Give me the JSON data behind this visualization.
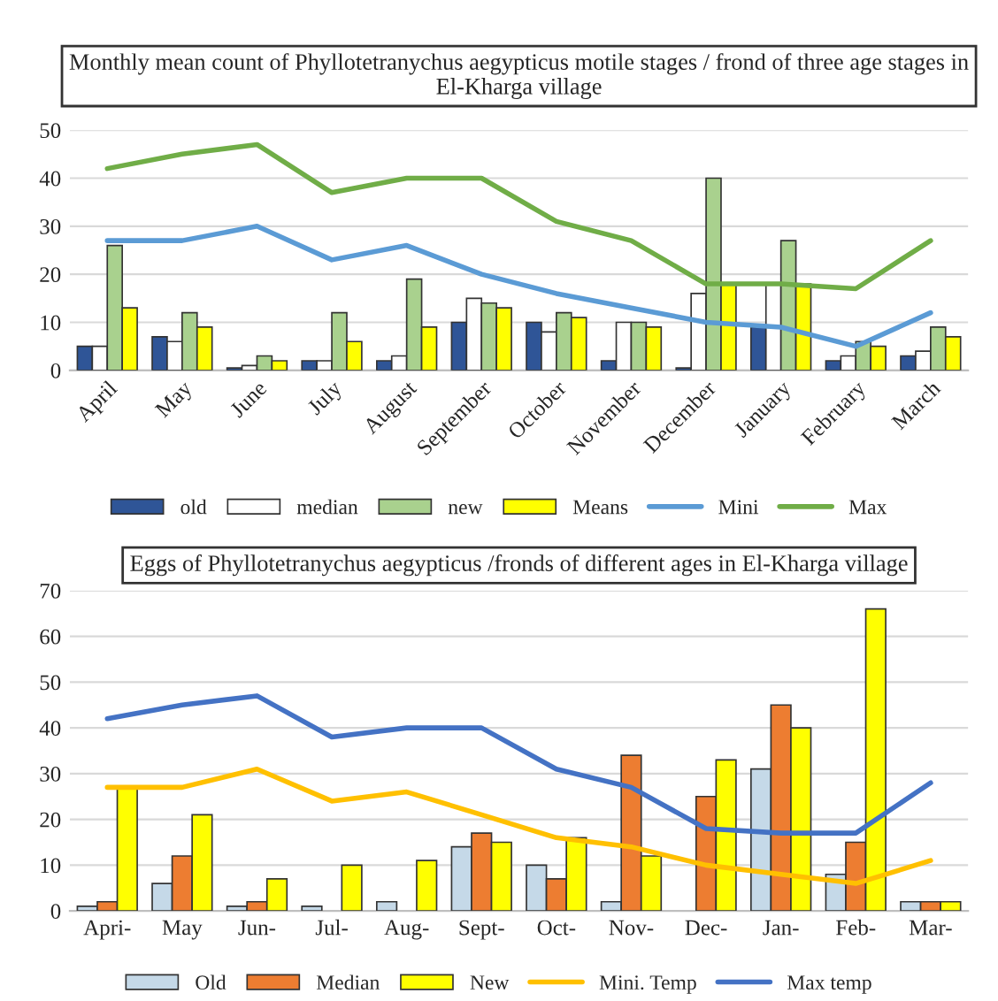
{
  "chart_data": [
    {
      "type": "bar",
      "title": "Monthly mean count of Phyllotetranychus aegypticus motile stages / frond of three age stages in El-Kharga village",
      "categories": [
        "April",
        "May",
        "June",
        "July",
        "August",
        "September",
        "October",
        "November",
        "December",
        "January",
        "February",
        "March"
      ],
      "series": [
        {
          "name": "old",
          "color": "#2f5597",
          "values": [
            5,
            7,
            0.5,
            2,
            2,
            10,
            10,
            2,
            0.5,
            9,
            2,
            3
          ]
        },
        {
          "name": "median",
          "color": "#ffffff",
          "values": [
            5,
            6,
            1,
            2,
            3,
            15,
            8,
            10,
            16,
            18,
            3,
            4
          ]
        },
        {
          "name": "new",
          "color": "#a9d18e",
          "values": [
            26,
            12,
            3,
            12,
            19,
            14,
            12,
            10,
            40,
            27,
            6,
            9
          ]
        },
        {
          "name": "Means",
          "color": "#ffff00",
          "values": [
            13,
            9,
            2,
            6,
            9,
            13,
            11,
            9,
            18,
            18,
            5,
            7
          ]
        },
        {
          "name": "Mini",
          "type": "line",
          "color": "#5b9bd5",
          "values": [
            27,
            27,
            30,
            23,
            26,
            20,
            16,
            13,
            10,
            9,
            5,
            12
          ]
        },
        {
          "name": "Max",
          "type": "line",
          "color": "#70ad47",
          "values": [
            42,
            45,
            47,
            37,
            40,
            40,
            31,
            27,
            18,
            18,
            17,
            27
          ]
        }
      ],
      "ylim": [
        0,
        50
      ],
      "yticks": [
        0,
        10,
        20,
        30,
        40,
        50
      ],
      "grid": "y",
      "legend": "bottom",
      "marker": "none",
      "line_style": "solid"
    },
    {
      "type": "bar",
      "title": "Eggs of Phyllotetranychus aegypticus /fronds of different ages in El-Kharga village",
      "categories": [
        "Apri-",
        "May",
        "Jun-",
        "Jul-",
        "Aug-",
        "Sept-",
        "Oct-",
        "Nov-",
        "Dec-",
        "Jan-",
        "Feb-",
        "Mar-"
      ],
      "series": [
        {
          "name": "Old",
          "color": "#c5d9e8",
          "values": [
            1,
            6,
            1,
            1,
            2,
            14,
            10,
            2,
            0,
            31,
            8,
            2
          ]
        },
        {
          "name": "Median",
          "color": "#ed7d31",
          "values": [
            2,
            12,
            2,
            0,
            0,
            17,
            7,
            34,
            25,
            45,
            15,
            2
          ]
        },
        {
          "name": "New",
          "color": "#ffff00",
          "values": [
            27,
            21,
            7,
            10,
            11,
            15,
            16,
            12,
            33,
            40,
            66,
            2
          ]
        },
        {
          "name": "Mini. Temp",
          "type": "line",
          "color": "#ffc000",
          "values": [
            27,
            27,
            31,
            24,
            26,
            21,
            16,
            14,
            10,
            8,
            6,
            11
          ]
        },
        {
          "name": "Max temp",
          "type": "line",
          "color": "#4472c4",
          "values": [
            42,
            45,
            47,
            38,
            40,
            40,
            31,
            27,
            18,
            17,
            17,
            28
          ]
        }
      ],
      "ylim": [
        0,
        70
      ],
      "yticks": [
        0,
        10,
        20,
        30,
        40,
        50,
        60,
        70
      ],
      "grid": "y",
      "legend": "bottom",
      "marker": "none",
      "line_style": "solid"
    }
  ]
}
